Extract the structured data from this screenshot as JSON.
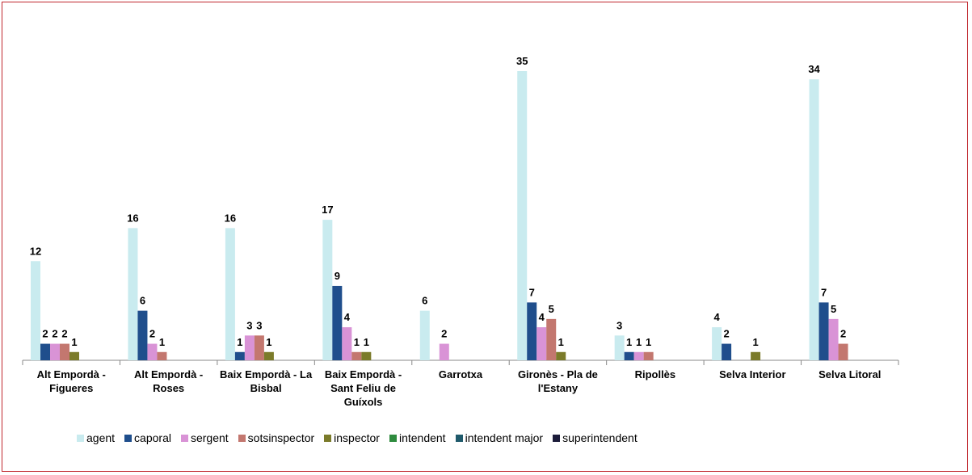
{
  "chart_data": {
    "type": "bar",
    "categories": [
      "Alt Empordà - Figueres",
      "Alt Empordà - Roses",
      "Baix Empordà - La Bisbal",
      "Baix Empordà - Sant Feliu de Guíxols",
      "Garrotxa",
      "Gironès - Pla de l'Estany",
      "Ripollès",
      "Selva Interior",
      "Selva Litoral"
    ],
    "series": [
      {
        "name": "agent",
        "color": "#c9ebef",
        "values": [
          12,
          16,
          16,
          17,
          6,
          35,
          3,
          4,
          34
        ]
      },
      {
        "name": "caporal",
        "color": "#1f4e8c",
        "values": [
          2,
          6,
          1,
          9,
          null,
          7,
          1,
          2,
          7
        ]
      },
      {
        "name": "sergent",
        "color": "#d993d6",
        "values": [
          2,
          2,
          3,
          4,
          2,
          4,
          1,
          null,
          5
        ]
      },
      {
        "name": "sotsinspector",
        "color": "#c3776f",
        "values": [
          2,
          1,
          3,
          1,
          null,
          5,
          1,
          null,
          2
        ]
      },
      {
        "name": "inspector",
        "color": "#7b7b2a",
        "values": [
          1,
          null,
          1,
          1,
          null,
          1,
          null,
          1,
          null
        ]
      },
      {
        "name": "intendent",
        "color": "#2e8b3e",
        "values": [
          null,
          null,
          null,
          null,
          null,
          null,
          null,
          null,
          null
        ]
      },
      {
        "name": "intendent major",
        "color": "#1f5a6b",
        "values": [
          null,
          null,
          null,
          null,
          null,
          null,
          null,
          null,
          null
        ]
      },
      {
        "name": "superintendent",
        "color": "#1c1c3a",
        "values": [
          null,
          null,
          null,
          null,
          null,
          null,
          null,
          null,
          null
        ]
      }
    ],
    "legend": "bottom"
  }
}
